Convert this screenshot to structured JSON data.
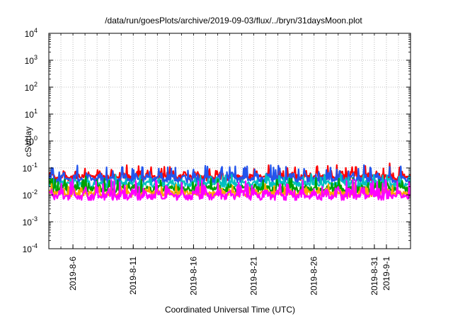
{
  "chart_data": {
    "type": "line",
    "title": "/data/run/goesPlots/archive/2019-09-03/flux/../bryn/31daysMoon.plot",
    "xlabel": "Coordinated Universal Time (UTC)",
    "ylabel": "cSv/day",
    "y_scale": "log",
    "ylim": [
      0.0001,
      10000
    ],
    "y_ticks": [
      {
        "value": 0.0001,
        "base": "10",
        "exp": "-4"
      },
      {
        "value": 0.001,
        "base": "10",
        "exp": "-3"
      },
      {
        "value": 0.01,
        "base": "10",
        "exp": "-2"
      },
      {
        "value": 0.1,
        "base": "10",
        "exp": "-1"
      },
      {
        "value": 1,
        "base": "10",
        "exp": "0"
      },
      {
        "value": 10,
        "base": "10",
        "exp": "1"
      },
      {
        "value": 100,
        "base": "10",
        "exp": "2"
      },
      {
        "value": 1000,
        "base": "10",
        "exp": "3"
      },
      {
        "value": 10000,
        "base": "10",
        "exp": "4"
      }
    ],
    "xlim": [
      "2019-08-04",
      "2019-09-03"
    ],
    "x_ticks": [
      {
        "date": "2019-08-06",
        "label": "2019-8-6"
      },
      {
        "date": "2019-08-11",
        "label": "2019-8-11"
      },
      {
        "date": "2019-08-16",
        "label": "2019-8-16"
      },
      {
        "date": "2019-08-21",
        "label": "2019-8-21"
      },
      {
        "date": "2019-08-26",
        "label": "2019-8-26"
      },
      {
        "date": "2019-08-31",
        "label": "2019-8-31"
      },
      {
        "date": "2019-09-01",
        "label": "2019-9-1"
      }
    ],
    "grid": true,
    "series": [
      {
        "color": "#ff0000",
        "baseline": 0.045,
        "peak": 0.13
      },
      {
        "color": "#2255ee",
        "baseline": 0.036,
        "peak": 0.12
      },
      {
        "color": "#00c0c0",
        "baseline": 0.024,
        "peak": 0.06
      },
      {
        "color": "#00a000",
        "baseline": 0.016,
        "peak": 0.04
      },
      {
        "color": "#ffa500",
        "baseline": 0.011,
        "peak": 0.025
      },
      {
        "color": "#ff00ff",
        "baseline": 0.0085,
        "peak": 0.035
      }
    ]
  }
}
